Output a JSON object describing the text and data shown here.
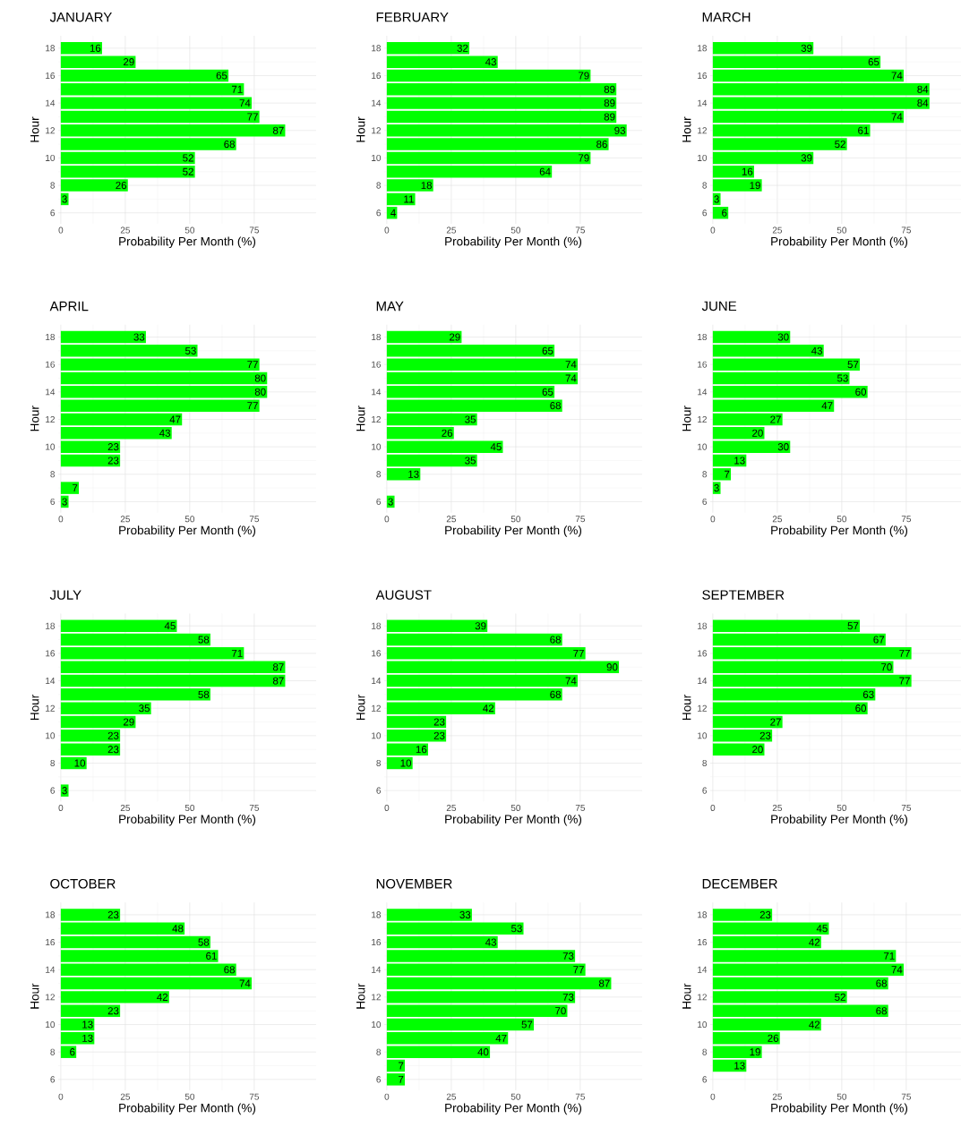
{
  "chart_data": [
    {
      "type": "bar",
      "orientation": "horizontal",
      "title": "JANUARY",
      "xlabel": "Probability Per Month (%)",
      "ylabel": "Hour",
      "color": "#00ff00",
      "data_labels": true,
      "grid": true,
      "xlim": [
        -1,
        99
      ],
      "xticks": [
        0,
        25,
        50,
        75
      ],
      "ylim": [
        5.2,
        18.9
      ],
      "yticks": [
        6,
        8,
        10,
        12,
        14,
        16,
        18
      ],
      "x": [
        18,
        17,
        16,
        15,
        14,
        13,
        12,
        11,
        10,
        9,
        8,
        7
      ],
      "values": [
        16,
        29,
        65,
        71,
        74,
        77,
        87,
        68,
        52,
        52,
        26,
        3
      ]
    },
    {
      "type": "bar",
      "orientation": "horizontal",
      "title": "FEBRUARY",
      "xlabel": "Probability Per Month (%)",
      "ylabel": "Hour",
      "color": "#00ff00",
      "data_labels": true,
      "grid": true,
      "xlim": [
        -1,
        99
      ],
      "xticks": [
        0,
        25,
        50,
        75
      ],
      "ylim": [
        5.2,
        18.9
      ],
      "yticks": [
        6,
        8,
        10,
        12,
        14,
        16,
        18
      ],
      "x": [
        18,
        17,
        16,
        15,
        14,
        13,
        12,
        11,
        10,
        9,
        8,
        7,
        6
      ],
      "values": [
        32,
        43,
        79,
        89,
        89,
        89,
        93,
        86,
        79,
        64,
        18,
        11,
        4
      ]
    },
    {
      "type": "bar",
      "orientation": "horizontal",
      "title": "MARCH",
      "xlabel": "Probability Per Month (%)",
      "ylabel": "Hour",
      "color": "#00ff00",
      "data_labels": true,
      "grid": true,
      "xlim": [
        -1,
        99
      ],
      "xticks": [
        0,
        25,
        50,
        75
      ],
      "ylim": [
        5.2,
        18.9
      ],
      "yticks": [
        6,
        8,
        10,
        12,
        14,
        16,
        18
      ],
      "x": [
        18,
        17,
        16,
        15,
        14,
        13,
        12,
        11,
        10,
        9,
        8,
        7,
        6
      ],
      "values": [
        39,
        65,
        74,
        84,
        84,
        74,
        61,
        52,
        39,
        16,
        19,
        3,
        6
      ]
    },
    {
      "type": "bar",
      "orientation": "horizontal",
      "title": "APRIL",
      "xlabel": "Probability Per Month (%)",
      "ylabel": "Hour",
      "color": "#00ff00",
      "data_labels": true,
      "grid": true,
      "xlim": [
        -1,
        99
      ],
      "xticks": [
        0,
        25,
        50,
        75
      ],
      "ylim": [
        5.2,
        18.9
      ],
      "yticks": [
        6,
        8,
        10,
        12,
        14,
        16,
        18
      ],
      "x": [
        18,
        17,
        16,
        15,
        14,
        13,
        12,
        11,
        10,
        9,
        8,
        7,
        6
      ],
      "values": [
        33,
        53,
        77,
        80,
        80,
        77,
        47,
        43,
        23,
        23,
        null,
        7,
        3
      ]
    },
    {
      "type": "bar",
      "orientation": "horizontal",
      "title": "MAY",
      "xlabel": "Probability Per Month (%)",
      "ylabel": "Hour",
      "color": "#00ff00",
      "data_labels": true,
      "grid": true,
      "xlim": [
        -1,
        99
      ],
      "xticks": [
        0,
        25,
        50,
        75
      ],
      "ylim": [
        5.2,
        18.9
      ],
      "yticks": [
        6,
        8,
        10,
        12,
        14,
        16,
        18
      ],
      "x": [
        18,
        17,
        16,
        15,
        14,
        13,
        12,
        11,
        10,
        9,
        8,
        7,
        6
      ],
      "values": [
        29,
        65,
        74,
        74,
        65,
        68,
        35,
        26,
        45,
        35,
        13,
        null,
        3
      ]
    },
    {
      "type": "bar",
      "orientation": "horizontal",
      "title": "JUNE",
      "xlabel": "Probability Per Month (%)",
      "ylabel": "Hour",
      "color": "#00ff00",
      "data_labels": true,
      "grid": true,
      "xlim": [
        -1,
        99
      ],
      "xticks": [
        0,
        25,
        50,
        75
      ],
      "ylim": [
        5.2,
        18.9
      ],
      "yticks": [
        6,
        8,
        10,
        12,
        14,
        16,
        18
      ],
      "x": [
        18,
        17,
        16,
        15,
        14,
        13,
        12,
        11,
        10,
        9,
        8,
        7
      ],
      "values": [
        30,
        43,
        57,
        53,
        60,
        47,
        27,
        20,
        30,
        13,
        7,
        3
      ]
    },
    {
      "type": "bar",
      "orientation": "horizontal",
      "title": "JULY",
      "xlabel": "Probability Per Month (%)",
      "ylabel": "Hour",
      "color": "#00ff00",
      "data_labels": true,
      "grid": true,
      "xlim": [
        -1,
        99
      ],
      "xticks": [
        0,
        25,
        50,
        75
      ],
      "ylim": [
        5.2,
        18.9
      ],
      "yticks": [
        6,
        8,
        10,
        12,
        14,
        16,
        18
      ],
      "x": [
        18,
        17,
        16,
        15,
        14,
        13,
        12,
        11,
        10,
        9,
        8,
        7,
        6
      ],
      "values": [
        45,
        58,
        71,
        87,
        87,
        58,
        35,
        29,
        23,
        23,
        10,
        null,
        3
      ]
    },
    {
      "type": "bar",
      "orientation": "horizontal",
      "title": "AUGUST",
      "xlabel": "Probability Per Month (%)",
      "ylabel": "Hour",
      "color": "#00ff00",
      "data_labels": true,
      "grid": true,
      "xlim": [
        -1,
        99
      ],
      "xticks": [
        0,
        25,
        50,
        75
      ],
      "ylim": [
        5.2,
        18.9
      ],
      "yticks": [
        6,
        8,
        10,
        12,
        14,
        16,
        18
      ],
      "x": [
        18,
        17,
        16,
        15,
        14,
        13,
        12,
        11,
        10,
        9,
        8
      ],
      "values": [
        39,
        68,
        77,
        90,
        74,
        68,
        42,
        23,
        23,
        16,
        10
      ]
    },
    {
      "type": "bar",
      "orientation": "horizontal",
      "title": "SEPTEMBER",
      "xlabel": "Probability Per Month (%)",
      "ylabel": "Hour",
      "color": "#00ff00",
      "data_labels": true,
      "grid": true,
      "xlim": [
        -1,
        99
      ],
      "xticks": [
        0,
        25,
        50,
        75
      ],
      "ylim": [
        5.2,
        18.9
      ],
      "yticks": [
        6,
        8,
        10,
        12,
        14,
        16,
        18
      ],
      "x": [
        18,
        17,
        16,
        15,
        14,
        13,
        12,
        11,
        10,
        9
      ],
      "values": [
        57,
        67,
        77,
        70,
        77,
        63,
        60,
        27,
        23,
        20
      ]
    },
    {
      "type": "bar",
      "orientation": "horizontal",
      "title": "OCTOBER",
      "xlabel": "Probability Per Month (%)",
      "ylabel": "Hour",
      "color": "#00ff00",
      "data_labels": true,
      "grid": true,
      "xlim": [
        -1,
        99
      ],
      "xticks": [
        0,
        25,
        50,
        75
      ],
      "ylim": [
        5.2,
        18.9
      ],
      "yticks": [
        6,
        8,
        10,
        12,
        14,
        16,
        18
      ],
      "x": [
        18,
        17,
        16,
        15,
        14,
        13,
        12,
        11,
        10,
        9,
        8
      ],
      "values": [
        23,
        48,
        58,
        61,
        68,
        74,
        42,
        23,
        13,
        13,
        6
      ]
    },
    {
      "type": "bar",
      "orientation": "horizontal",
      "title": "NOVEMBER",
      "xlabel": "Probability Per Month (%)",
      "ylabel": "Hour",
      "color": "#00ff00",
      "data_labels": true,
      "grid": true,
      "xlim": [
        -1,
        99
      ],
      "xticks": [
        0,
        25,
        50,
        75
      ],
      "ylim": [
        5.2,
        18.9
      ],
      "yticks": [
        6,
        8,
        10,
        12,
        14,
        16,
        18
      ],
      "x": [
        18,
        17,
        16,
        15,
        14,
        13,
        12,
        11,
        10,
        9,
        8,
        7,
        6
      ],
      "values": [
        33,
        53,
        43,
        73,
        77,
        87,
        73,
        70,
        57,
        47,
        40,
        7,
        7
      ]
    },
    {
      "type": "bar",
      "orientation": "horizontal",
      "title": "DECEMBER",
      "xlabel": "Probability Per Month (%)",
      "ylabel": "Hour",
      "color": "#00ff00",
      "data_labels": true,
      "grid": true,
      "xlim": [
        -1,
        99
      ],
      "xticks": [
        0,
        25,
        50,
        75
      ],
      "ylim": [
        5.2,
        18.9
      ],
      "yticks": [
        6,
        8,
        10,
        12,
        14,
        16,
        18
      ],
      "x": [
        18,
        17,
        16,
        15,
        14,
        13,
        12,
        11,
        10,
        9,
        8,
        7
      ],
      "values": [
        23,
        45,
        42,
        71,
        74,
        68,
        52,
        68,
        42,
        26,
        19,
        13
      ]
    }
  ]
}
